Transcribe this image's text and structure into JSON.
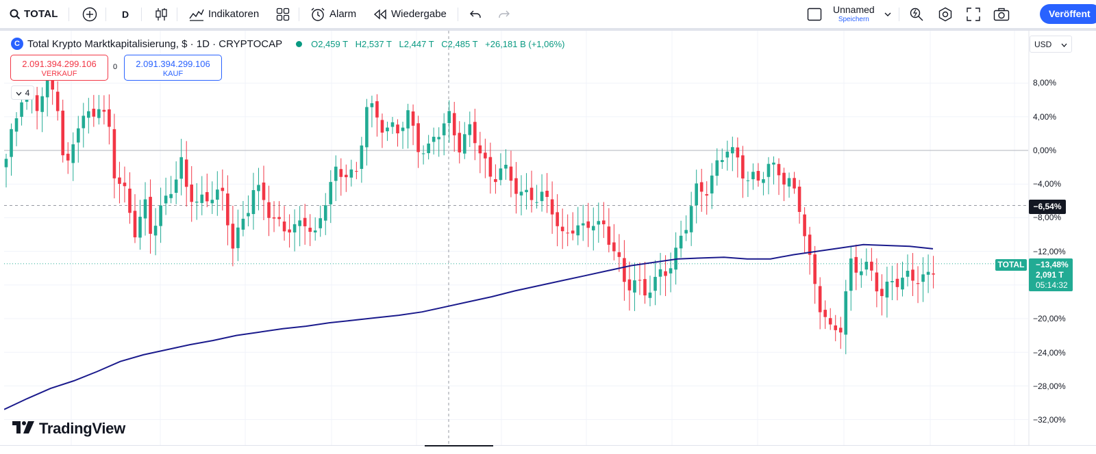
{
  "toolbar": {
    "symbol": "TOTAL",
    "interval": "D",
    "indicators_label": "Indikatoren",
    "alert_label": "Alarm",
    "replay_label": "Wiedergabe",
    "layout_name": "Unnamed",
    "layout_save": "Speichern",
    "publish_label": "Veröffent",
    "icons": [
      "search-icon",
      "add-symbol-icon",
      "candles-icon",
      "indicators-icon",
      "templates-icon",
      "alarm-icon",
      "replay-icon",
      "undo-icon",
      "redo-icon",
      "layout-icon",
      "chevron-down-icon",
      "quick-search-icon",
      "settings-icon",
      "fullscreen-icon",
      "camera-icon"
    ]
  },
  "legend": {
    "logo_char": "C",
    "title": "Total Krypto Marktkapitalisierung, $ · 1D · CRYPTOCAP",
    "open": "O2,459 T",
    "high": "H2,537 T",
    "low": "L2,447 T",
    "close": "C2,485 T",
    "change": "+26,181 B (+1,06%)"
  },
  "order": {
    "sell_value": "2.091.394.299.106",
    "sell_label": "VERKAUF",
    "spread": "0",
    "buy_value": "2.091.394.299.106",
    "buy_label": "KAUF",
    "collapse_count": "4"
  },
  "price_scale": {
    "currency": "USD",
    "ticks": [
      "8,00%",
      "4,00%",
      "0,00%",
      "−4,00%",
      "−8,00%",
      "−12,00%",
      "−20,00%",
      "−24,00%",
      "−28,00%",
      "−32,00%"
    ],
    "crosshair_value": "−6,54%",
    "symbol_tag": "TOTAL",
    "current_pct": "−13,48%",
    "current_price": "2,091 T",
    "countdown": "05:14:32"
  },
  "colors": {
    "up": "#22ab94",
    "down": "#f23645",
    "ma": "#1a1a8c",
    "accent": "#2962ff"
  },
  "watermark": "TradingView",
  "chart_data": {
    "type": "candlestick",
    "y_unit": "% change",
    "ma_series": [
      -30.8,
      -29.5,
      -28.3,
      -27.4,
      -26.3,
      -25.1,
      -24.3,
      -23.7,
      -23.1,
      -22.6,
      -22.0,
      -21.6,
      -21.2,
      -20.9,
      -20.5,
      -20.2,
      -19.9,
      -19.6,
      -19.2,
      -18.6,
      -18.0,
      -17.4,
      -16.7,
      -16.1,
      -15.5,
      -14.9,
      -14.3,
      -13.7,
      -13.3,
      -12.9,
      -12.8,
      -12.7,
      -12.9,
      -12.9,
      -12.4,
      -12.0,
      -11.6,
      -11.2,
      -11.3,
      -11.4,
      -11.7
    ]
  }
}
